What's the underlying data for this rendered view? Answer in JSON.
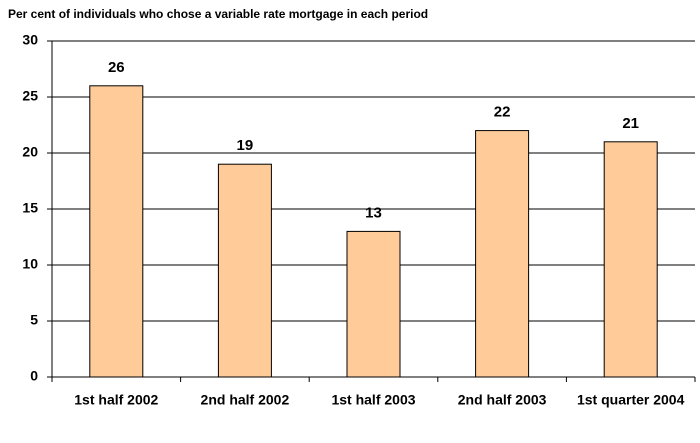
{
  "chart_data": {
    "type": "bar",
    "title": "Per cent of individuals who chose a variable rate mortgage in each period",
    "categories": [
      "1st half 2002",
      "2nd half 2002",
      "1st half 2003",
      "2nd half 2003",
      "1st quarter 2004"
    ],
    "values": [
      26,
      19,
      13,
      22,
      21
    ],
    "color": "#ffcc99",
    "ylim": [
      0,
      30
    ],
    "yticks": [
      0,
      5,
      10,
      15,
      20,
      25,
      30
    ],
    "grid": true
  }
}
